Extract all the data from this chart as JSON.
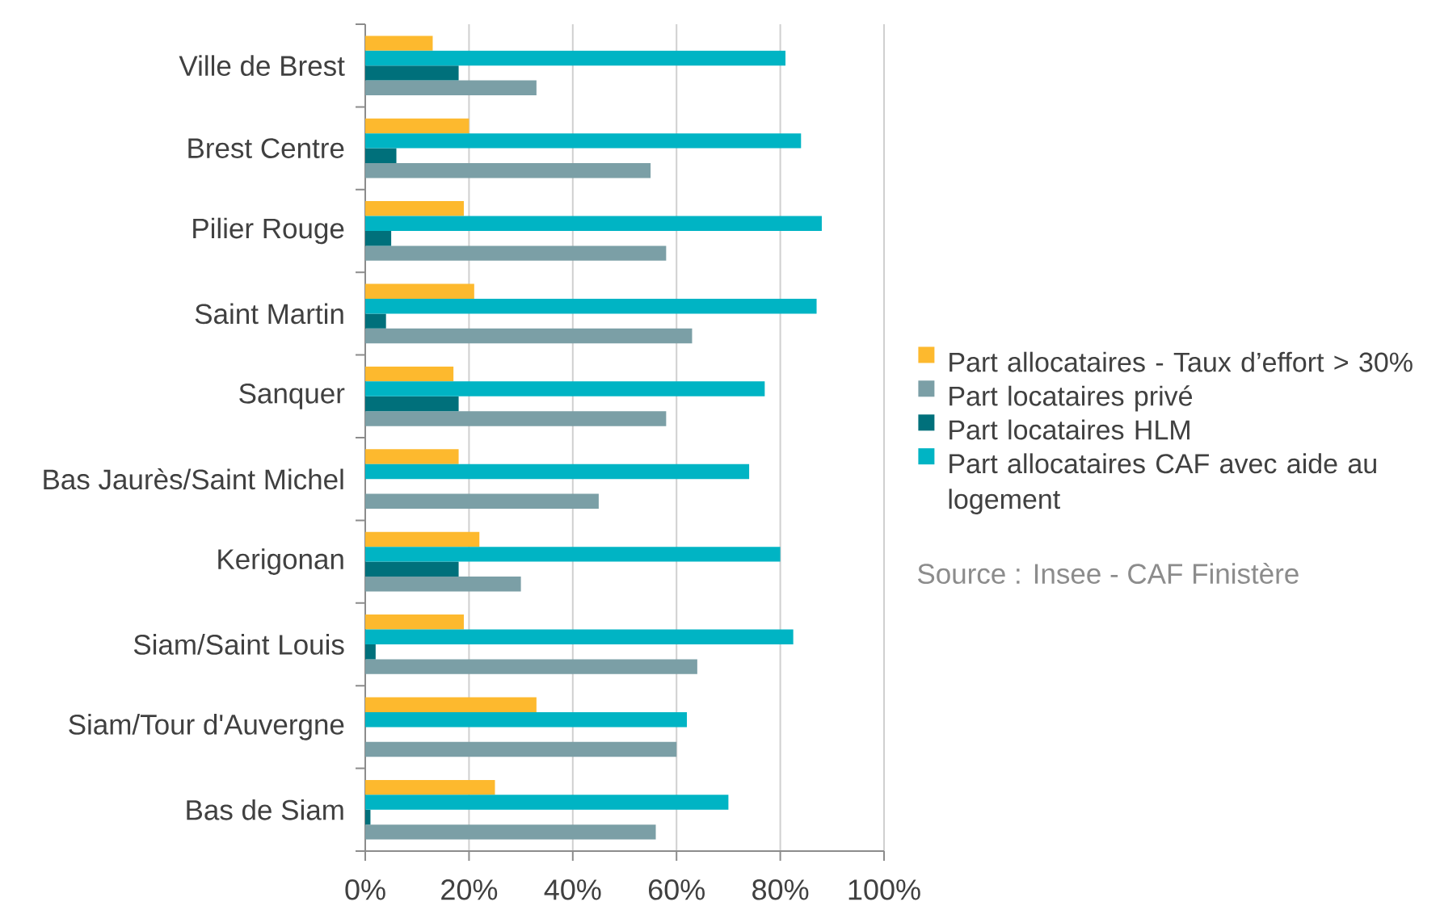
{
  "chart_data": {
    "type": "bar",
    "orientation": "horizontal",
    "categories": [
      "Ville de Brest",
      "Brest Centre",
      "Pilier Rouge",
      "Saint Martin",
      "Sanquer",
      "Bas Jaurès/Saint Michel",
      "Kerigonan",
      "Siam/Saint Louis",
      "Siam/Tour d'Auvergne",
      "Bas de Siam"
    ],
    "series": [
      {
        "name": "Part allocataires - Taux d’effort > 30%",
        "color": "#fdb92e",
        "values": [
          13,
          20,
          19,
          21,
          17,
          18,
          22,
          19,
          33,
          25
        ]
      },
      {
        "name": "Part locataires privé",
        "color": "#7b9fa6",
        "values": [
          33,
          55,
          58,
          63,
          58,
          45,
          30,
          64,
          60,
          56
        ]
      },
      {
        "name": "Part locataires HLM",
        "color": "#00707b",
        "values": [
          18,
          6,
          5,
          4,
          18,
          null,
          18,
          2,
          null,
          1
        ]
      },
      {
        "name": "Part allocataires CAF avec aide au logement",
        "color": "#00b4c4",
        "values": [
          81,
          84,
          88,
          87,
          77,
          74,
          80,
          82.5,
          62,
          70
        ]
      }
    ],
    "xlim": [
      0,
      100
    ],
    "xticks": [
      {
        "value": 0,
        "label": "0%"
      },
      {
        "value": 20,
        "label": "20%"
      },
      {
        "value": 40,
        "label": "40%"
      },
      {
        "value": 60,
        "label": "60%"
      },
      {
        "value": 80,
        "label": "80%"
      },
      {
        "value": 100,
        "label": "100%"
      }
    ],
    "grid": "x",
    "legend": "right",
    "annotations": [
      "Source : Insee - CAF Finistère"
    ]
  }
}
